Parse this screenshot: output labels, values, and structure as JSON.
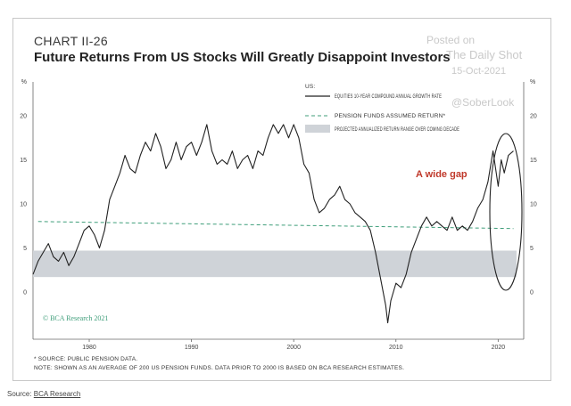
{
  "header": {
    "chart_label": "CHART II-26",
    "title": "Future Returns From US Stocks Will Greatly Disappoint Investors"
  },
  "watermark": {
    "posted_on": "Posted on",
    "outlet": "The Daily Shot",
    "date": "15-Oct-2021",
    "handle": "@SoberLook"
  },
  "footnotes": {
    "source_line": "* SOURCE: PUBLIC PENSION DATA.",
    "note_line": "NOTE: SHOWN AS AN AVERAGE OF 200 US PENSION FUNDS. DATA PRIOR TO 2000 IS BASED ON BCA RESEARCH ESTIMATES."
  },
  "page_source": {
    "prefix": "Source: ",
    "link": "BCA Research"
  },
  "colors": {
    "line": "#222222",
    "pension": "#3f9e7a",
    "band": "#cfd3d8",
    "annotation": "#c0392b",
    "ellipse": "#222222"
  },
  "chart_data": {
    "type": "line",
    "title": "Future Returns From US Stocks Will Greatly Disappoint Investors",
    "ylabel": "%",
    "xlim": [
      1974.5,
      2022.5
    ],
    "ylim": [
      -5,
      24
    ],
    "yticks": [
      0,
      5,
      10,
      15,
      20
    ],
    "xticks": [
      1980,
      1990,
      2000,
      2010,
      2020
    ],
    "grid": false,
    "legend_position": "top-right",
    "legend_header": "US:",
    "legend": {
      "equities": "EQUITIES 10-YEAR COMPOUND ANNUAL GROWTH RATE",
      "pension": "PENSION FUNDS ASSUMED RETURN*",
      "band": "PROJECTED ANNUALIZED RETURN RANGE OVER COMING DECADE"
    },
    "annotation": "A wide gap",
    "credit": "© BCA Research 2021",
    "series": [
      {
        "name": "EQUITIES 10-YEAR COMPOUND ANNUAL GROWTH RATE",
        "x": [
          1974.5,
          1975,
          1975.5,
          1976,
          1976.5,
          1977,
          1977.5,
          1978,
          1978.5,
          1979,
          1979.5,
          1980,
          1980.5,
          1981,
          1981.5,
          1982,
          1982.5,
          1983,
          1983.5,
          1984,
          1984.5,
          1985,
          1985.5,
          1986,
          1986.5,
          1987,
          1987.5,
          1988,
          1988.5,
          1989,
          1989.5,
          1990,
          1990.5,
          1991,
          1991.5,
          1992,
          1992.5,
          1993,
          1993.5,
          1994,
          1994.5,
          1995,
          1995.5,
          1996,
          1996.5,
          1997,
          1997.5,
          1998,
          1998.5,
          1999,
          1999.5,
          2000,
          2000.5,
          2001,
          2001.5,
          2002,
          2002.5,
          2003,
          2003.5,
          2004,
          2004.5,
          2005,
          2005.5,
          2006,
          2006.5,
          2007,
          2007.5,
          2008,
          2008.5,
          2009,
          2009.2,
          2009.5,
          2010,
          2010.5,
          2011,
          2011.5,
          2012,
          2012.5,
          2013,
          2013.5,
          2014,
          2014.5,
          2015,
          2015.5,
          2016,
          2016.5,
          2017,
          2017.5,
          2018,
          2018.5,
          2019,
          2019.5,
          2020,
          2020.3,
          2020.6,
          2021,
          2021.5
        ],
        "y": [
          2.0,
          3.5,
          4.5,
          5.5,
          4.0,
          3.5,
          4.5,
          3.0,
          4.0,
          5.5,
          7.0,
          7.5,
          6.5,
          5.0,
          7.0,
          10.5,
          12.0,
          13.5,
          15.5,
          14.0,
          13.5,
          15.5,
          17.0,
          16.0,
          18.0,
          16.5,
          14.0,
          15.0,
          17.0,
          15.0,
          16.5,
          17.0,
          15.5,
          17.0,
          19.0,
          16.0,
          14.5,
          15.0,
          14.5,
          16.0,
          14.0,
          15.0,
          15.5,
          14.0,
          16.0,
          15.5,
          17.5,
          19.0,
          18.0,
          19.0,
          17.5,
          19.0,
          17.5,
          14.5,
          13.5,
          10.5,
          9.0,
          9.5,
          10.5,
          11.0,
          12.0,
          10.5,
          10.0,
          9.0,
          8.5,
          8.0,
          7.0,
          4.5,
          1.5,
          -1.5,
          -3.5,
          -1.0,
          1.0,
          0.5,
          2.0,
          4.5,
          6.0,
          7.5,
          8.5,
          7.5,
          8.0,
          7.5,
          7.0,
          8.5,
          7.0,
          7.5,
          7.0,
          8.0,
          9.5,
          10.5,
          12.5,
          16.0,
          12.0,
          15.0,
          13.5,
          15.5,
          16.0
        ]
      },
      {
        "name": "PENSION FUNDS ASSUMED RETURN*",
        "x": [
          1975,
          2021.5
        ],
        "y": [
          8.0,
          7.2
        ]
      }
    ],
    "band_range": {
      "x": [
        1974.5,
        2021.8
      ],
      "y": [
        1.7,
        4.7
      ]
    }
  }
}
